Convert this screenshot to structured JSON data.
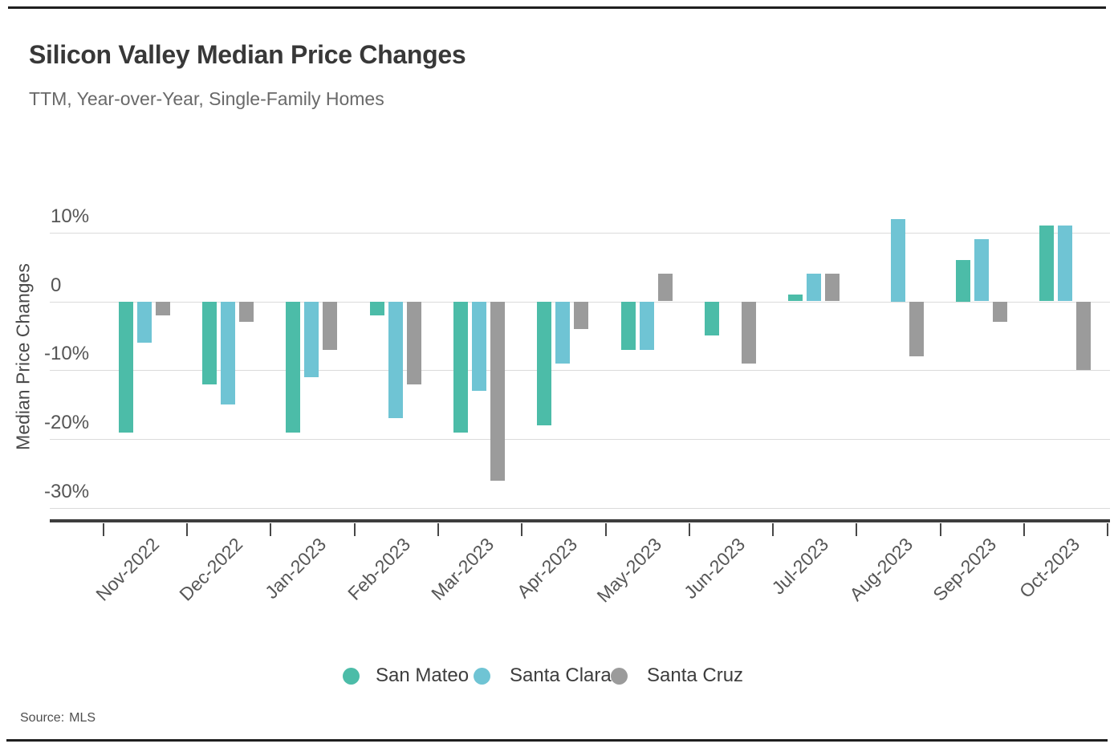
{
  "chart_data": {
    "type": "bar",
    "title": "Silicon Valley Median Price Changes",
    "subtitle": "TTM, Year-over-Year, Single-Family Homes",
    "ylabel": "Median Price Changes",
    "xlabel": "",
    "unit": "%",
    "categories": [
      "Nov-2022",
      "Dec-2022",
      "Jan-2023",
      "Feb-2023",
      "Mar-2023",
      "Apr-2023",
      "May-2023",
      "Jun-2023",
      "Jul-2023",
      "Aug-2023",
      "Sep-2023",
      "Oct-2023"
    ],
    "series": [
      {
        "name": "San Mateo",
        "color": "#4cbca8",
        "values": [
          -19,
          -12,
          -19,
          -2,
          -19,
          -18,
          -7,
          -5,
          1,
          0,
          6,
          11
        ]
      },
      {
        "name": "Santa Clara",
        "color": "#6fc4d4",
        "values": [
          -6,
          -15,
          -11,
          -17,
          -13,
          -9,
          -7,
          0,
          4,
          12,
          9,
          11
        ]
      },
      {
        "name": "Santa Cruz",
        "color": "#9b9b9b",
        "values": [
          -2,
          -3,
          -7,
          -12,
          -26,
          -4,
          4,
          -9,
          4,
          -8,
          -3,
          -10
        ]
      }
    ],
    "yticks": [
      {
        "value": 10,
        "label": "10%"
      },
      {
        "value": 0,
        "label": "0"
      },
      {
        "value": -10,
        "label": "-10%"
      },
      {
        "value": -20,
        "label": "-20%"
      },
      {
        "value": -30,
        "label": "-30%"
      }
    ],
    "ylim": [
      -30,
      10
    ],
    "grid": true,
    "legend_position": "bottom"
  },
  "source": {
    "label": "Source:",
    "value": "MLS"
  },
  "colors": {
    "gridline": "#dbdbdb",
    "axis": "#3d3d3d",
    "frame_rule": "#1f1f1f"
  }
}
